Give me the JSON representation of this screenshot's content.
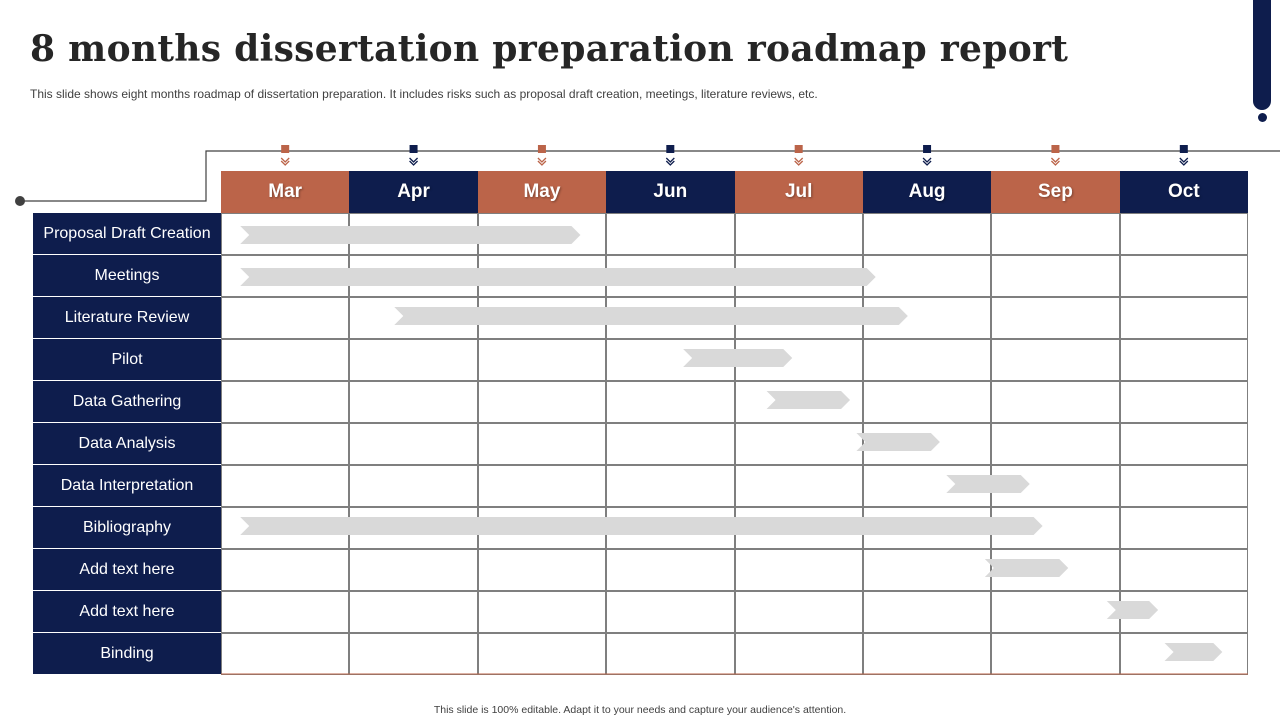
{
  "title": "8 months dissertation preparation roadmap report",
  "subtitle": "This slide shows eight months roadmap of dissertation preparation. It includes risks such as proposal draft creation, meetings, literature reviews, etc.",
  "footer": "This slide is 100% editable.  Adapt it to your needs and capture your audience's attention.",
  "colors": {
    "navy": "#0e1d4d",
    "rust": "#bb6449",
    "bar": "#d9d9d9",
    "grid": "#7f7f7f",
    "line": "#404040"
  },
  "months": [
    {
      "label": "Mar",
      "color": "rust"
    },
    {
      "label": "Apr",
      "color": "navy"
    },
    {
      "label": "May",
      "color": "rust"
    },
    {
      "label": "Jun",
      "color": "navy"
    },
    {
      "label": "Jul",
      "color": "rust"
    },
    {
      "label": "Aug",
      "color": "navy"
    },
    {
      "label": "Sep",
      "color": "rust"
    },
    {
      "label": "Oct",
      "color": "navy"
    }
  ],
  "tasks": [
    {
      "label": "Proposal Draft Creation",
      "start_month": 0.15,
      "end_month": 2.8
    },
    {
      "label": "Meetings",
      "start_month": 0.15,
      "end_month": 5.1
    },
    {
      "label": "Literature Review",
      "start_month": 1.35,
      "end_month": 5.35
    },
    {
      "label": "Pilot",
      "start_month": 3.6,
      "end_month": 4.45
    },
    {
      "label": "Data Gathering",
      "start_month": 4.25,
      "end_month": 4.9
    },
    {
      "label": "Data Analysis",
      "start_month": 4.95,
      "end_month": 5.6
    },
    {
      "label": "Data Interpretation",
      "start_month": 5.65,
      "end_month": 6.3
    },
    {
      "label": "Bibliography",
      "start_month": 0.15,
      "end_month": 6.4
    },
    {
      "label": "Add text here",
      "start_month": 5.95,
      "end_month": 6.6
    },
    {
      "label": "Add text here",
      "start_month": 6.9,
      "end_month": 7.3
    },
    {
      "label": "Binding",
      "start_month": 7.35,
      "end_month": 7.8
    }
  ]
}
